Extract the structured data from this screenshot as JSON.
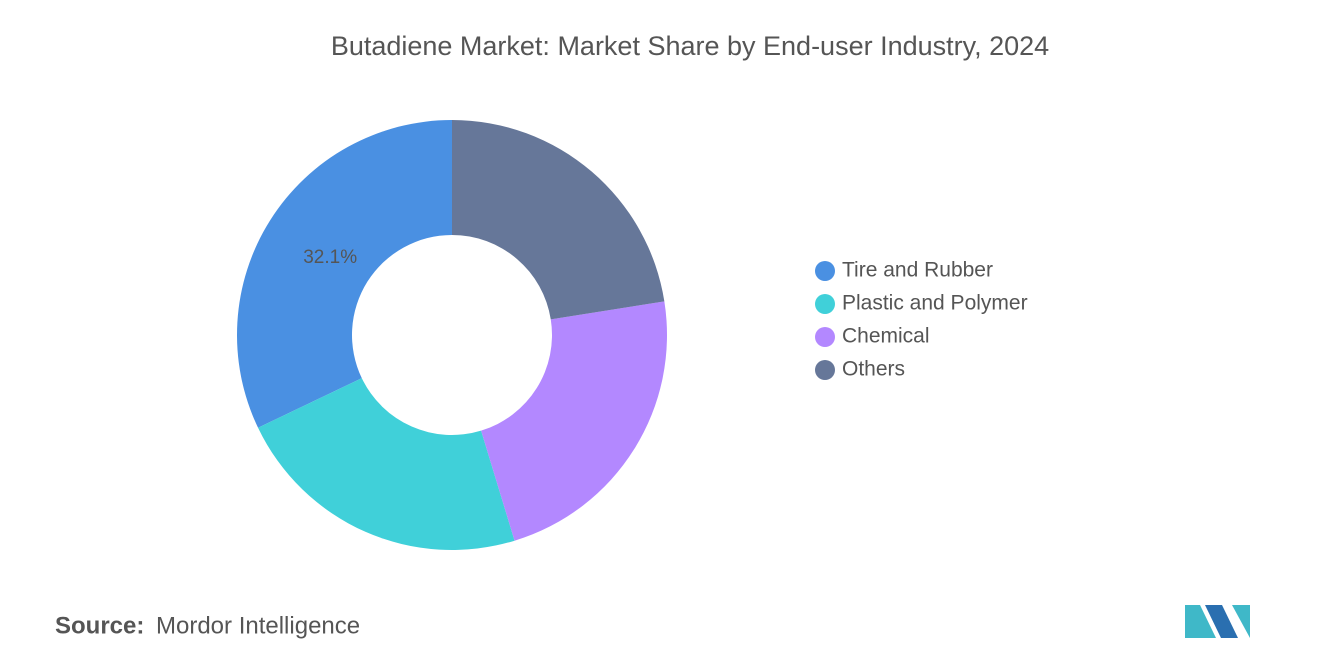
{
  "chart_data": {
    "type": "donut",
    "title": "Butadiene Market: Market Share by End-user Industry, 2024",
    "categories": [
      "Tire and Rubber",
      "Plastic and Polymer",
      "Chemical",
      "Others"
    ],
    "values": [
      32.1,
      22.6,
      22.8,
      22.5
    ],
    "value_labels": [
      "32.1%",
      null,
      null,
      null
    ],
    "colors": [
      "#4a90e2",
      "#40d0d9",
      "#b388ff",
      "#667799"
    ],
    "legend": "right"
  },
  "source": {
    "label": "Source:",
    "text": "Mordor Intelligence"
  }
}
